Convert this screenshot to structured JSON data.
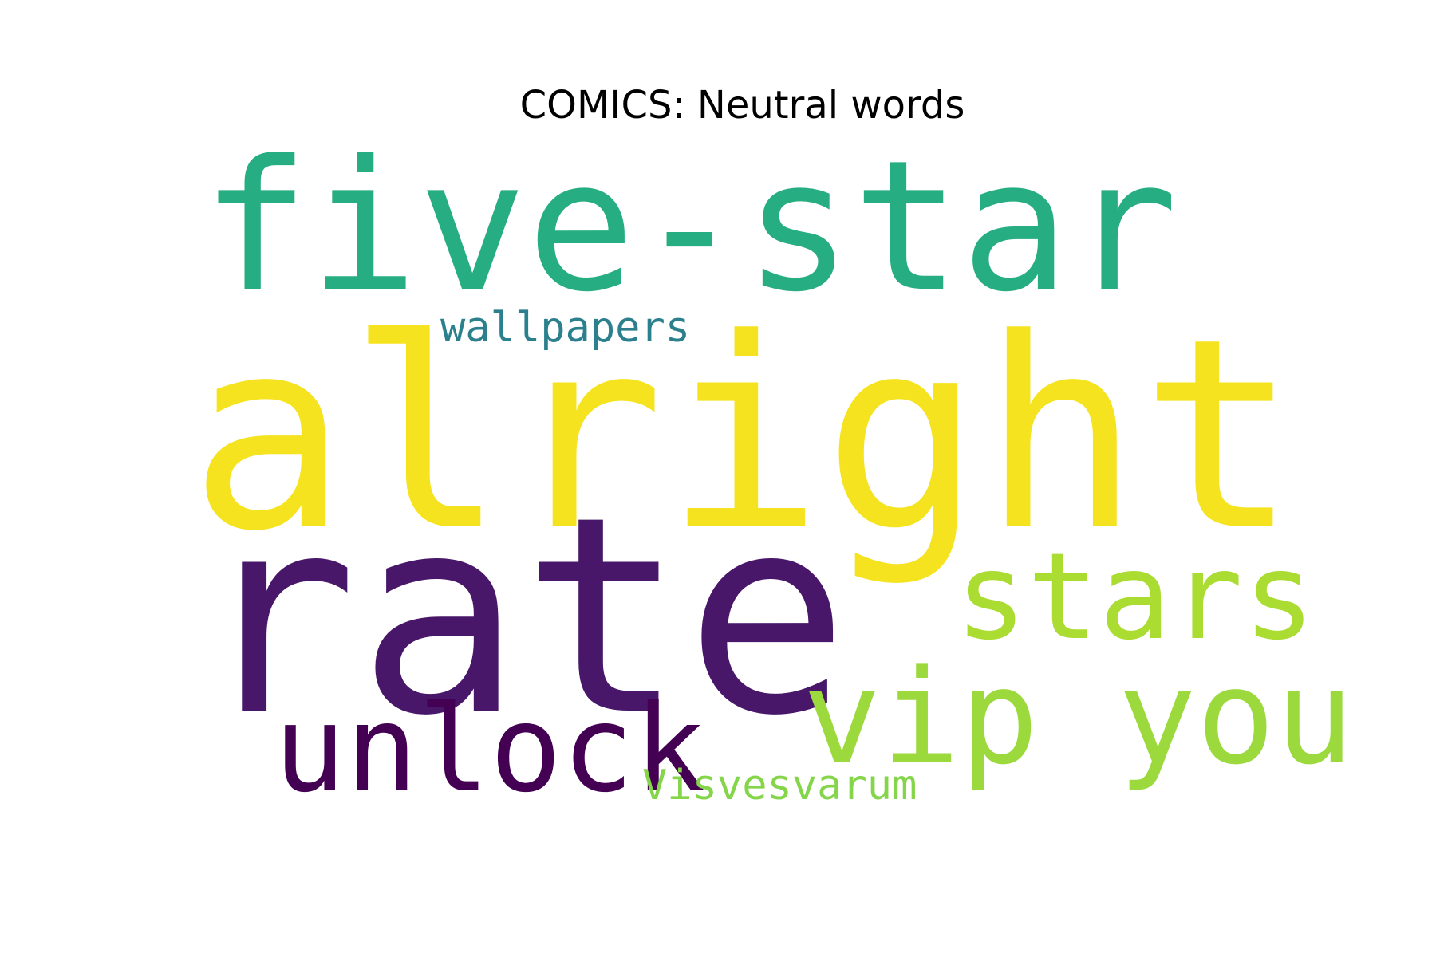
{
  "title": "COMICS: Neutral words",
  "words": [
    {
      "text": "five-star",
      "color": "#26AD81"
    },
    {
      "text": "alright",
      "color": "#F6E31F"
    },
    {
      "text": "rate",
      "color": "#481769"
    },
    {
      "text": "stars",
      "color": "#AADC32"
    },
    {
      "text": "vip you",
      "color": "#9BD93C"
    },
    {
      "text": "unlock",
      "color": "#440154"
    },
    {
      "text": "wallpapers",
      "color": "#2C808E"
    },
    {
      "text": "Visvesvarum",
      "color": "#85D54A"
    }
  ]
}
